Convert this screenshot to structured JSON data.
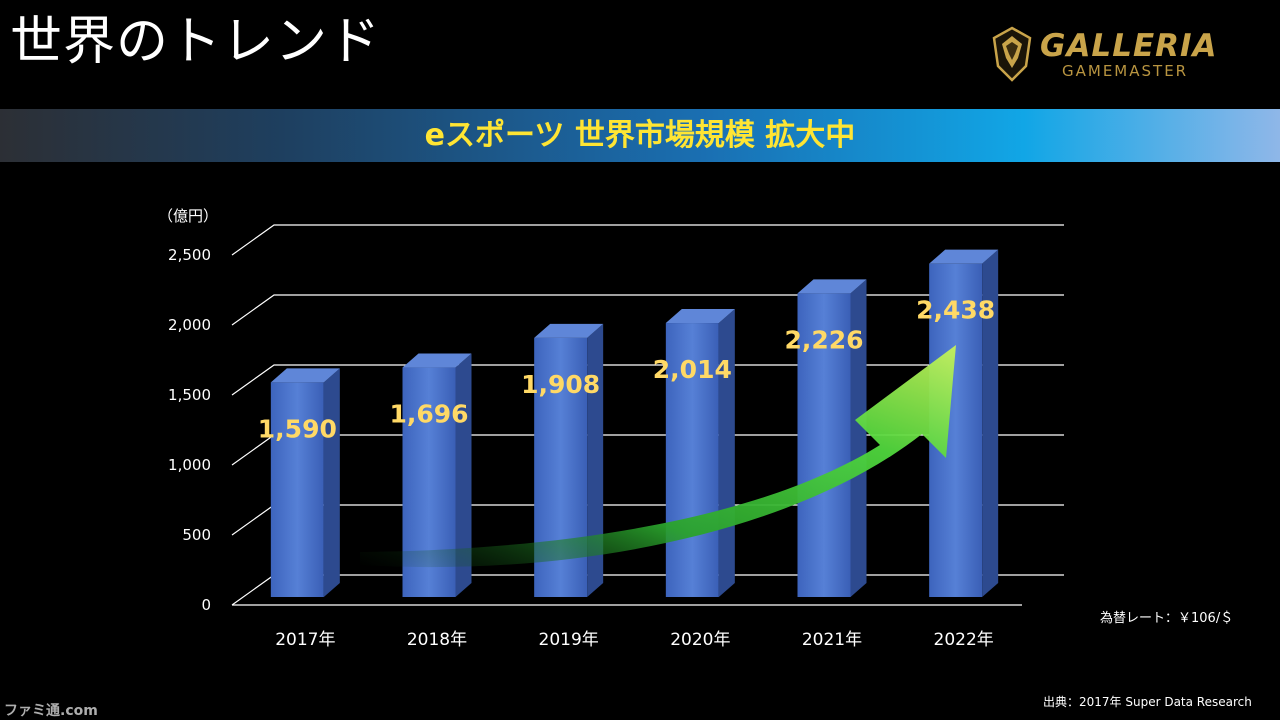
{
  "slide": {
    "title": "世界のトレンド",
    "banner": "eスポーツ 世界市場規模 拡大中"
  },
  "logo": {
    "main": "GALLERIA",
    "sub": "GAMEMASTER",
    "icon": "crest-icon"
  },
  "notes": {
    "exchange_rate": "為替レート：￥106/＄",
    "source": "出典：2017年 Super Data Research",
    "watermark": "ファミ通.com"
  },
  "colors": {
    "bar_front": "#4a74cf",
    "bar_side": "#2d4a8f",
    "bar_top": "#5f86d8",
    "value_label": "#ffd966",
    "banner_text": "#ffe533",
    "arrow": "#5fd33a",
    "logo": "#c9a44a"
  },
  "chart_data": {
    "type": "bar",
    "unit_label": "（億円）",
    "categories": [
      "2017年",
      "2018年",
      "2019年",
      "2020年",
      "2021年",
      "2022年"
    ],
    "values": [
      1590,
      1696,
      1908,
      2014,
      2226,
      2438
    ],
    "value_labels": [
      "1,590",
      "1,696",
      "1,908",
      "2,014",
      "2,226",
      "2,438"
    ],
    "yticks": [
      0,
      500,
      1000,
      1500,
      2000,
      2500
    ],
    "ytick_labels": [
      "0",
      "500",
      "1,000",
      "1,500",
      "2,000",
      "2,500"
    ],
    "ylim": [
      0,
      2500
    ],
    "grid": true,
    "style": "3d",
    "trend_arrow": "up"
  }
}
